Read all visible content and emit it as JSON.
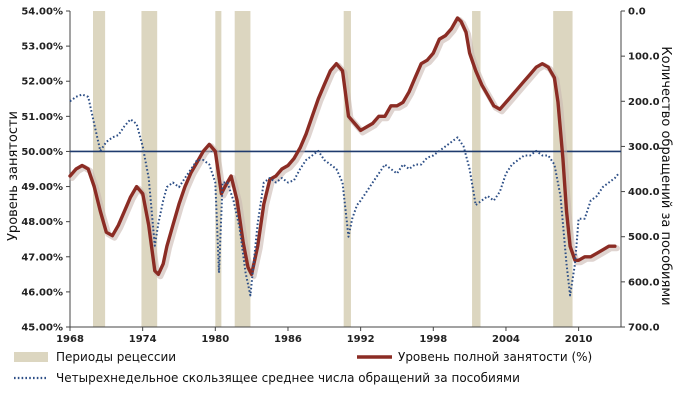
{
  "chart_data": {
    "type": "line",
    "ylabel_left": "Уровень занятости",
    "ylabel_right": "Количество обращений за пособиями",
    "x_ticks": [
      "1968",
      "1974",
      "1980",
      "1986",
      "1992",
      "1998",
      "2004",
      "2010"
    ],
    "xlim": [
      1968,
      2013.5
    ],
    "ylim_left": [
      45,
      54
    ],
    "y_ticks_left": [
      "45.00%",
      "46.00%",
      "47.00%",
      "48.00%",
      "49.00%",
      "50.00%",
      "51.00%",
      "52.00%",
      "53.00%",
      "54.00%"
    ],
    "ylim_right_inverted": [
      0,
      700
    ],
    "y_ticks_right": [
      "0.0",
      "100.0",
      "200.0",
      "300.0",
      "400.0",
      "500.0",
      "600.0",
      "700.0"
    ],
    "reference_line": 50.0,
    "recessions": [
      [
        1969.9,
        1970.9
      ],
      [
        1973.9,
        1975.2
      ],
      [
        1980.0,
        1980.5
      ],
      [
        1981.6,
        1982.9
      ],
      [
        1990.6,
        1991.2
      ],
      [
        2001.2,
        2001.9
      ],
      [
        2007.9,
        2009.5
      ]
    ],
    "legend": {
      "recession": "Периоды рецессии",
      "employment": "Уровень полной занятости (%)",
      "claims": "Четырехнедельное скользящее среднее числа обращений за пособиями"
    },
    "colors": {
      "employment": "#8b2c24",
      "claims": "#2c4e86",
      "recession": "#dcd6c0",
      "reference": "#1f3b6e"
    },
    "series": [
      {
        "name": "Уровень полной занятости (%)",
        "axis": "left",
        "x": [
          1968.0,
          1968.5,
          1969.0,
          1969.5,
          1970.0,
          1970.5,
          1971.0,
          1971.5,
          1972.0,
          1972.5,
          1973.0,
          1973.5,
          1974.0,
          1974.5,
          1975.0,
          1975.3,
          1975.7,
          1976.0,
          1976.5,
          1977.0,
          1977.5,
          1978.0,
          1978.5,
          1979.0,
          1979.5,
          1980.0,
          1980.5,
          1980.8,
          1981.3,
          1981.8,
          1982.3,
          1982.7,
          1983.0,
          1983.5,
          1984.0,
          1984.5,
          1985.0,
          1985.5,
          1986.0,
          1986.5,
          1987.0,
          1987.5,
          1988.0,
          1988.5,
          1989.0,
          1989.5,
          1990.0,
          1990.5,
          1991.0,
          1991.5,
          1992.0,
          1992.5,
          1993.0,
          1993.5,
          1994.0,
          1994.5,
          1995.0,
          1995.5,
          1996.0,
          1996.5,
          1997.0,
          1997.5,
          1998.0,
          1998.5,
          1999.0,
          1999.5,
          2000.0,
          2000.3,
          2000.7,
          2001.0,
          2001.5,
          2002.0,
          2002.5,
          2003.0,
          2003.5,
          2004.0,
          2004.5,
          2005.0,
          2005.5,
          2006.0,
          2006.5,
          2007.0,
          2007.5,
          2008.0,
          2008.3,
          2008.7,
          2009.0,
          2009.3,
          2009.7,
          2010.0,
          2010.5,
          2011.0,
          2011.5,
          2012.0,
          2012.5,
          2013.0
        ],
        "y": [
          49.3,
          49.5,
          49.6,
          49.5,
          49.0,
          48.3,
          47.7,
          47.6,
          47.9,
          48.3,
          48.7,
          49.0,
          48.8,
          47.9,
          46.6,
          46.5,
          46.8,
          47.3,
          47.9,
          48.5,
          49.0,
          49.4,
          49.7,
          50.0,
          50.2,
          50.0,
          48.8,
          49.0,
          49.3,
          48.6,
          47.4,
          46.7,
          46.5,
          47.3,
          48.5,
          49.2,
          49.3,
          49.5,
          49.6,
          49.8,
          50.1,
          50.5,
          51.0,
          51.5,
          51.9,
          52.3,
          52.5,
          52.3,
          51.0,
          50.8,
          50.6,
          50.7,
          50.8,
          51.0,
          51.0,
          51.3,
          51.3,
          51.4,
          51.7,
          52.1,
          52.5,
          52.6,
          52.8,
          53.2,
          53.3,
          53.5,
          53.8,
          53.7,
          53.4,
          52.8,
          52.3,
          51.9,
          51.6,
          51.3,
          51.2,
          51.4,
          51.6,
          51.8,
          52.0,
          52.2,
          52.4,
          52.5,
          52.4,
          52.1,
          51.4,
          49.8,
          48.3,
          47.3,
          46.9,
          46.9,
          47.0,
          47.0,
          47.1,
          47.2,
          47.3,
          47.3
        ]
      },
      {
        "name": "Четырехнедельное скользящее среднее числа обращений за пособиями",
        "axis": "right",
        "x": [
          1968.0,
          1968.5,
          1969.0,
          1969.5,
          1970.0,
          1970.5,
          1971.0,
          1971.5,
          1972.0,
          1972.5,
          1973.0,
          1973.5,
          1974.0,
          1974.5,
          1975.0,
          1975.3,
          1975.7,
          1976.0,
          1976.5,
          1977.0,
          1977.5,
          1978.0,
          1978.5,
          1979.0,
          1979.5,
          1980.0,
          1980.3,
          1980.6,
          1981.0,
          1981.5,
          1982.0,
          1982.5,
          1982.9,
          1983.5,
          1984.0,
          1984.5,
          1985.0,
          1985.5,
          1986.0,
          1986.5,
          1987.0,
          1987.5,
          1988.0,
          1988.5,
          1989.0,
          1989.5,
          1990.0,
          1990.5,
          1991.0,
          1991.3,
          1991.7,
          1992.0,
          1992.5,
          1993.0,
          1993.5,
          1994.0,
          1994.5,
          1995.0,
          1995.5,
          1996.0,
          1996.5,
          1997.0,
          1997.5,
          1998.0,
          1998.5,
          1999.0,
          1999.5,
          2000.0,
          2000.5,
          2001.0,
          2001.5,
          2002.0,
          2002.5,
          2003.0,
          2003.5,
          2004.0,
          2004.5,
          2005.0,
          2005.5,
          2006.0,
          2006.5,
          2007.0,
          2007.5,
          2008.0,
          2008.5,
          2009.0,
          2009.3,
          2009.7,
          2010.0,
          2010.5,
          2011.0,
          2011.5,
          2012.0,
          2012.5,
          2013.0,
          2013.3
        ],
        "y": [
          200,
          190,
          185,
          190,
          250,
          310,
          290,
          280,
          275,
          255,
          240,
          250,
          300,
          370,
          520,
          470,
          420,
          390,
          380,
          390,
          370,
          350,
          330,
          330,
          340,
          380,
          580,
          380,
          380,
          420,
          480,
          580,
          630,
          470,
          380,
          370,
          380,
          370,
          380,
          375,
          350,
          330,
          320,
          310,
          330,
          340,
          350,
          380,
          500,
          460,
          430,
          420,
          400,
          380,
          360,
          340,
          350,
          360,
          340,
          350,
          340,
          340,
          325,
          320,
          310,
          300,
          290,
          280,
          300,
          350,
          430,
          420,
          410,
          420,
          400,
          360,
          340,
          330,
          320,
          320,
          310,
          320,
          320,
          340,
          410,
          560,
          630,
          560,
          460,
          460,
          420,
          410,
          390,
          380,
          370,
          360
        ]
      }
    ]
  }
}
